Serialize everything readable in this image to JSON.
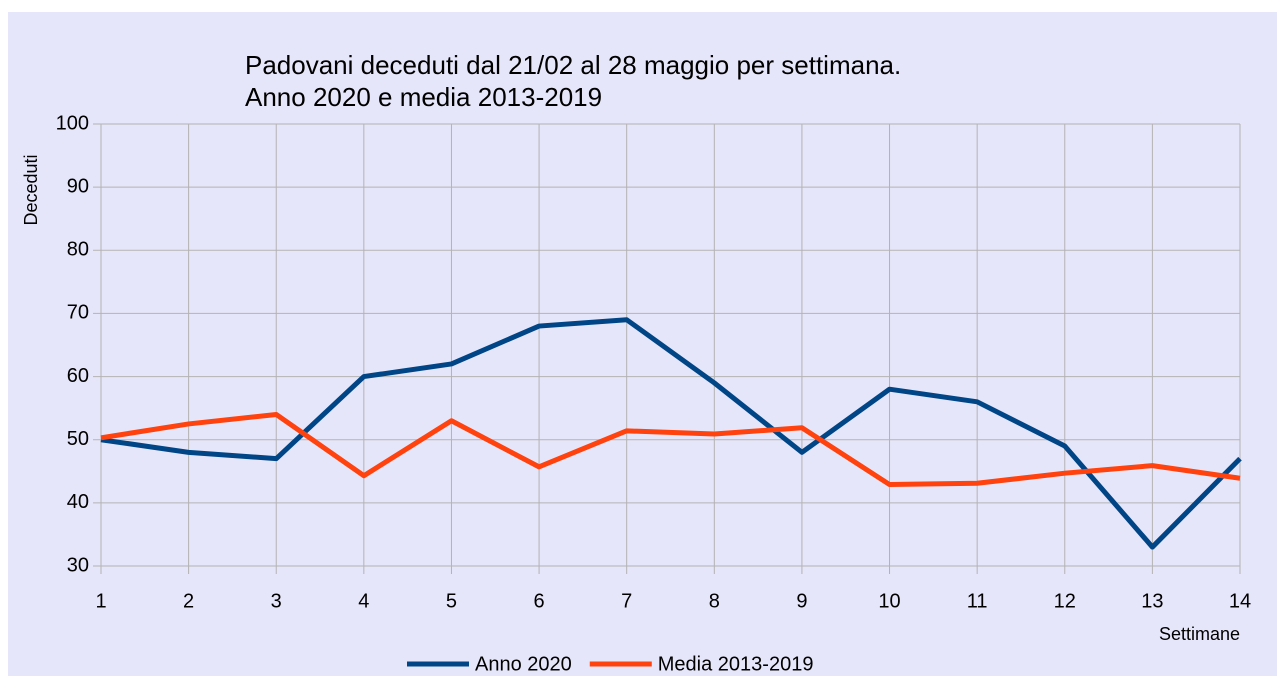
{
  "chart_data": {
    "type": "line",
    "title": "Padovani deceduti dal 21/02 al 28 maggio per settimana.",
    "subtitle": "Anno 2020 e media 2013-2019",
    "x_label": "Settimane",
    "y_label": "Deceduti",
    "x": [
      1,
      2,
      3,
      4,
      5,
      6,
      7,
      8,
      9,
      10,
      11,
      12,
      13,
      14
    ],
    "series": [
      {
        "name": "Anno 2020",
        "color": "#004586",
        "values": [
          50,
          48,
          47,
          60,
          62,
          68,
          69,
          59,
          48,
          58,
          56,
          49,
          33,
          47
        ]
      },
      {
        "name": "Media 2013-2019",
        "color": "#ff420e",
        "values": [
          50.3,
          52.5,
          54,
          44.3,
          53,
          45.7,
          51.4,
          50.9,
          51.9,
          42.9,
          43.1,
          44.7,
          45.9,
          43.9
        ]
      }
    ],
    "xlim": [
      1,
      14
    ],
    "xticks": [
      1,
      2,
      3,
      4,
      5,
      6,
      7,
      8,
      9,
      10,
      11,
      12,
      13,
      14
    ],
    "ylim": [
      30,
      100
    ],
    "yticks": [
      30,
      40,
      50,
      60,
      70,
      80,
      90,
      100
    ],
    "grid": true,
    "legend": "bottom"
  }
}
